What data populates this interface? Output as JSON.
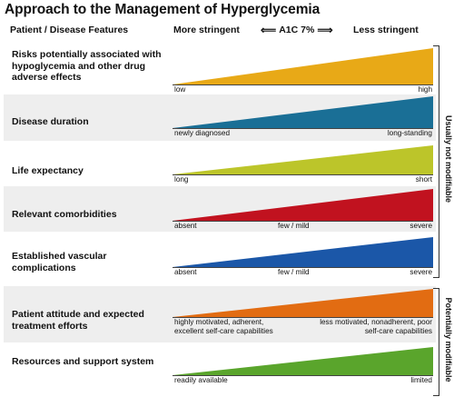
{
  "title": "Approach to the Management of Hyperglycemia",
  "header": {
    "features": "Patient / Disease Features",
    "more": "More stringent",
    "a1c": "A1C 7%",
    "less": "Less stringent",
    "left_arrow": "⟸",
    "right_arrow": "⟹"
  },
  "rows": [
    {
      "label": "Risks potentially associated with hypoglycemia and other drug adverse effects",
      "color": "#e8a917",
      "ticks": [
        "low",
        "high"
      ]
    },
    {
      "label": "Disease duration",
      "color": "#1a6f96",
      "ticks": [
        "newly diagnosed",
        "long-standing"
      ]
    },
    {
      "label": "Life expectancy",
      "color": "#bcc52a",
      "ticks": [
        "long",
        "short"
      ]
    },
    {
      "label": "Relevant comorbidities",
      "color": "#c1121f",
      "ticks": [
        "absent",
        "few / mild",
        "severe"
      ]
    },
    {
      "label": "Established vascular complications",
      "color": "#1b57a8",
      "ticks": [
        "absent",
        "few / mild",
        "severe"
      ]
    },
    {
      "label": "Patient attitude and expected treatment efforts",
      "color": "#e26c12",
      "ticks": [
        "highly motivated, adherent, excellent self-care capabilities",
        "less motivated, nonadherent, poor self-care capabilities"
      ]
    },
    {
      "label": "Resources and support system",
      "color": "#5aa52c",
      "ticks": [
        "readily available",
        "limited"
      ]
    }
  ],
  "side": {
    "group1": "Usually not modifiable",
    "group2": "Potentially modifiable"
  }
}
